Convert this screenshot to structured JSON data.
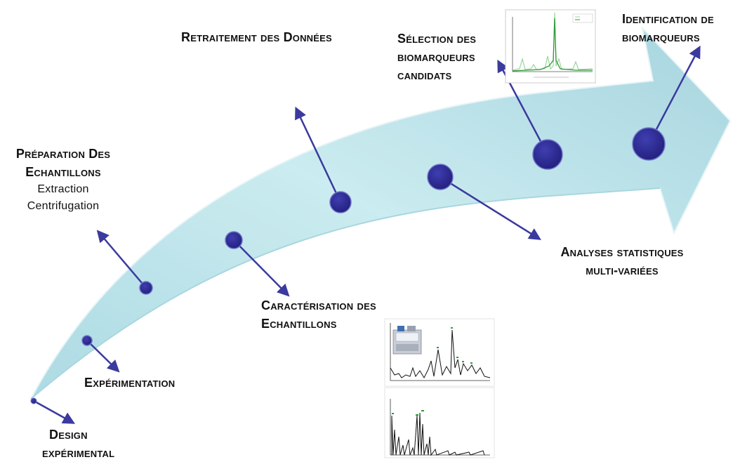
{
  "steps": {
    "design": {
      "line1": "Design",
      "line2": "expérimental"
    },
    "experimentation": {
      "label": "Expérimentation"
    },
    "preparation": {
      "line1": "Préparation Des",
      "line2": "Echantillons",
      "sub1": "Extraction",
      "sub2": "Centrifugation"
    },
    "caracterisation": {
      "line1": "Caractérisation des",
      "line2": "Echantillons"
    },
    "retraitement": {
      "label": "Retraitement des Données"
    },
    "analyses": {
      "line1": "Analyses statistiques",
      "line2": "multi-variées"
    },
    "selection": {
      "line1": "Sélection des",
      "line2": "biomarqueurs",
      "line3": "candidats"
    },
    "identification": {
      "line1": "Identification de",
      "line2": "biomarqueurs"
    }
  },
  "colors": {
    "arrow_fill": "#bfe3ea",
    "arrow_fill_dark": "#8ecad6",
    "node_fill": "#2b2a8e",
    "node_stroke": "#6e74c8",
    "connector": "#3b3a9e",
    "chart_line": "#2f9a3a",
    "chart_light": "#9ad69a"
  },
  "icons": [
    "instrument-icon",
    "spectrum-thumbnail",
    "chromatogram-thumbnail"
  ]
}
